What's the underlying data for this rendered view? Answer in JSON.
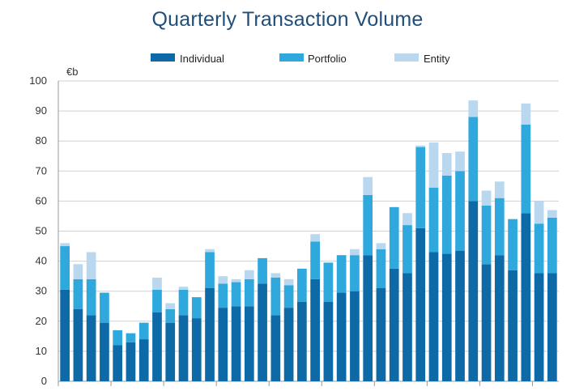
{
  "chart_data": {
    "type": "bar",
    "stacked": true,
    "title": "Quarterly Transaction Volume",
    "unit_label": "€b",
    "ylim": [
      0,
      100
    ],
    "yticks": [
      0,
      10,
      20,
      30,
      40,
      50,
      60,
      70,
      80,
      90,
      100
    ],
    "grid": true,
    "legend_position": "top",
    "series": [
      {
        "name": "Individual",
        "color": "#0e6aa6",
        "values": [
          30.5,
          24,
          22,
          19.5,
          12,
          13,
          14,
          23,
          19.5,
          22,
          21,
          31,
          24.5,
          25,
          25,
          32.5,
          22,
          24.5,
          26.5,
          34,
          26.5,
          29.5,
          30,
          42,
          31,
          37.5,
          36,
          51,
          43,
          42.5,
          43.5,
          60,
          39,
          42,
          37,
          56,
          36,
          36
        ]
      },
      {
        "name": "Portfolio",
        "color": "#2ea8dd",
        "values": [
          14.5,
          10,
          12,
          10,
          5,
          3,
          5.5,
          7.5,
          4.5,
          8.5,
          7,
          12,
          8,
          8,
          9,
          8.5,
          12.5,
          7.5,
          11,
          12.5,
          13,
          12.5,
          12,
          20,
          13,
          20.5,
          16,
          27,
          21.5,
          26,
          26.5,
          28,
          19.5,
          19,
          17,
          29.5,
          16.5,
          18.5
        ]
      },
      {
        "name": "Entity",
        "color": "#b9d8f0",
        "values": [
          1,
          5,
          9,
          0,
          0,
          0,
          0,
          4,
          2,
          1,
          0,
          1,
          2.5,
          1,
          3,
          0,
          1.5,
          2,
          0,
          2.5,
          0,
          0,
          2,
          6,
          2,
          0,
          4,
          0.5,
          15,
          7.5,
          6.5,
          5.5,
          5,
          5.5,
          0,
          7,
          7.5,
          2.5
        ]
      }
    ]
  }
}
